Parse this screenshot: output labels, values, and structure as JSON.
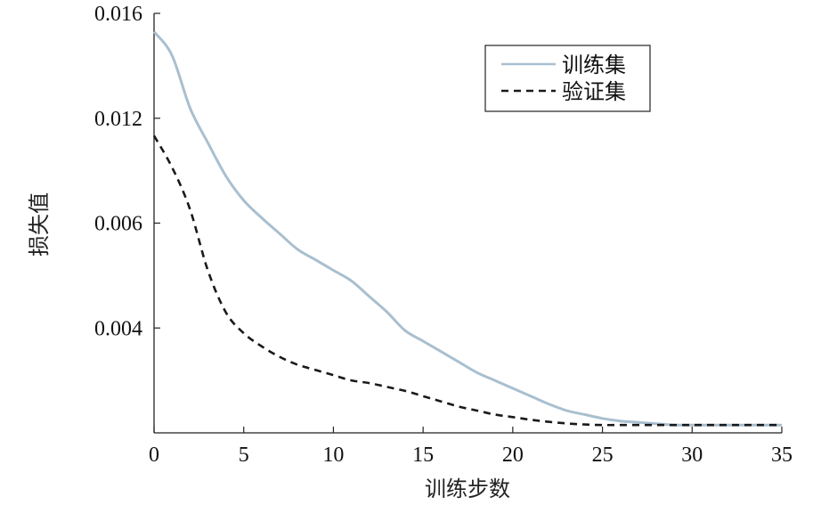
{
  "chart_data": {
    "type": "line",
    "xlabel": "训练步数",
    "ylabel": "损失值",
    "x_ticks": [
      "0",
      "5",
      "10",
      "15",
      "20",
      "25",
      "30",
      "35"
    ],
    "y_ticks": [
      "0.004",
      "0.006",
      "0.012",
      "0.016"
    ],
    "xlim": [
      0,
      35
    ],
    "legend_position": "top-right",
    "grid": false,
    "series": [
      {
        "name": "训练集",
        "color": "#a9bfcf",
        "style": "solid",
        "x": [
          0,
          1,
          2,
          3,
          4,
          5,
          6,
          7,
          8,
          9,
          10,
          11,
          12,
          13,
          14,
          15,
          16,
          17,
          18,
          19,
          20,
          21,
          22,
          23,
          24,
          25,
          26,
          27,
          28,
          29,
          30,
          31,
          32,
          33,
          34,
          35
        ],
        "y": [
          0.0153,
          0.0144,
          0.0124,
          0.0106,
          0.0087,
          0.0073,
          0.0063,
          0.0058,
          0.0055,
          0.0053,
          0.0051,
          0.0049,
          0.0046,
          0.0043,
          0.0039,
          0.0035,
          0.0031,
          0.0027,
          0.0023,
          0.002,
          0.0017,
          0.0014,
          0.0011,
          0.00085,
          0.0007,
          0.00055,
          0.00045,
          0.0004,
          0.00035,
          0.0003,
          0.0003,
          0.0003,
          0.0003,
          0.0003,
          0.0003,
          0.0003
        ]
      },
      {
        "name": "验证集",
        "color": "#1a1a1a",
        "style": "dashed",
        "x": [
          0,
          1,
          2,
          3,
          4,
          5,
          6,
          7,
          8,
          9,
          10,
          11,
          12,
          13,
          14,
          15,
          16,
          17,
          18,
          19,
          20,
          21,
          22,
          23,
          24,
          25,
          26,
          27,
          28,
          29,
          30,
          31,
          32,
          33,
          34,
          35
        ],
        "y": [
          0.011,
          0.0092,
          0.0068,
          0.0051,
          0.0043,
          0.0038,
          0.0033,
          0.0029,
          0.0026,
          0.0024,
          0.0022,
          0.002,
          0.0019,
          0.00175,
          0.0016,
          0.0014,
          0.0012,
          0.001,
          0.00085,
          0.0007,
          0.0006,
          0.0005,
          0.00042,
          0.00036,
          0.00032,
          0.0003,
          0.0003,
          0.0003,
          0.0003,
          0.0003,
          0.0003,
          0.0003,
          0.0003,
          0.0003,
          0.0003,
          0.0003
        ]
      }
    ]
  }
}
